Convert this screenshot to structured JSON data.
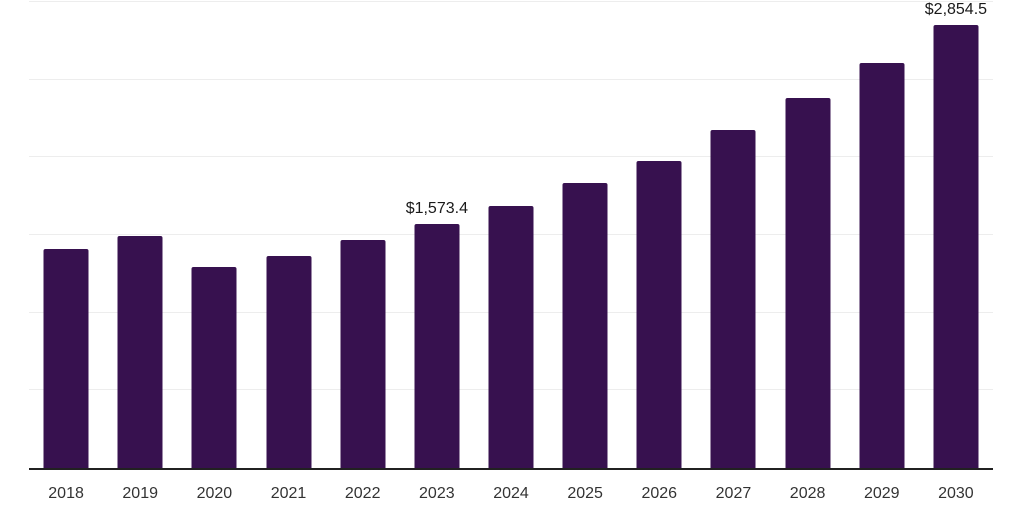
{
  "chart_data": {
    "type": "bar",
    "title": "",
    "xlabel": "",
    "ylabel": "",
    "categories": [
      "2018",
      "2019",
      "2020",
      "2021",
      "2022",
      "2023",
      "2024",
      "2025",
      "2026",
      "2027",
      "2028",
      "2029",
      "2030"
    ],
    "values": [
      1410.0,
      1492.0,
      1296.0,
      1368.0,
      1466.0,
      1573.4,
      1690.0,
      1834.0,
      1979.0,
      2175.0,
      2382.0,
      2609.0,
      2854.5
    ],
    "point_labels": [
      null,
      null,
      null,
      null,
      null,
      "$1,573.4",
      null,
      null,
      null,
      null,
      null,
      null,
      "$2,854.5"
    ],
    "ylim": [
      0,
      3000
    ],
    "gridline_values": [
      500,
      1000,
      1500,
      2000,
      2500,
      3000
    ],
    "grid": true,
    "legend": false,
    "legend_position": "none"
  },
  "colors": {
    "bar": "#37114F",
    "gridline": "#ededed",
    "axis_line": "#212121",
    "tick_text": "#333333",
    "data_label_text": "#1a1a1a",
    "background": "#ffffff"
  }
}
